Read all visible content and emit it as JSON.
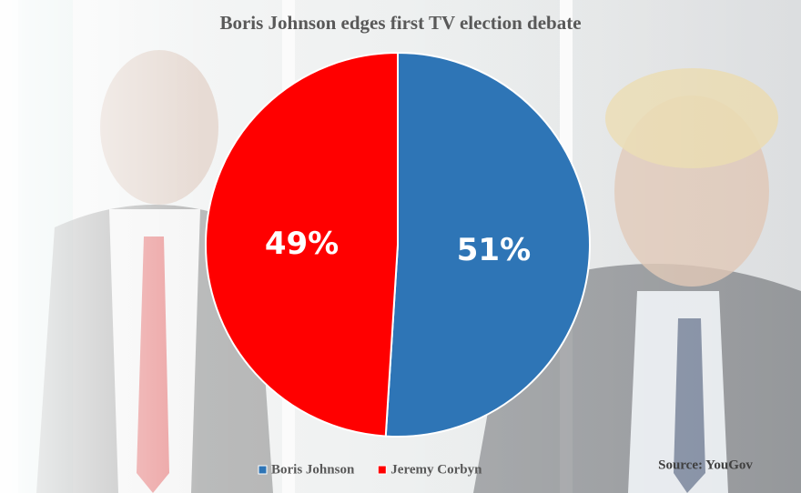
{
  "chart_data": {
    "type": "pie",
    "title": "Boris Johnson edges first TV election debate",
    "categories": [
      "Boris Johnson",
      "Jeremy Corbyn"
    ],
    "values": [
      51,
      49
    ],
    "value_labels": [
      "51%",
      "49%"
    ],
    "colors": [
      "#2e75b6",
      "#ff0000"
    ],
    "source": "Source: YouGov"
  }
}
